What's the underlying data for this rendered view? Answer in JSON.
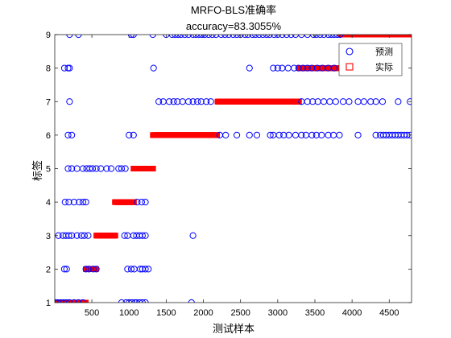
{
  "chart_data": {
    "type": "scatter",
    "title": "MRFO-BLS准确率",
    "subtitle": "accuracy=83.3055%",
    "xlabel": "测试样本",
    "ylabel": "标签",
    "xlim": [
      1,
      4800
    ],
    "ylim": [
      1,
      9
    ],
    "xticks": [
      500,
      1000,
      1500,
      2000,
      2500,
      3000,
      3500,
      4000,
      4500
    ],
    "yticks": [
      1,
      2,
      3,
      4,
      5,
      6,
      7,
      8,
      9
    ],
    "grid": false,
    "legend_position": "top-right",
    "series": [
      {
        "name": "预测",
        "marker": "circle",
        "color": "#0000ff",
        "points": [
          [
            10,
            1
          ],
          [
            40,
            1
          ],
          [
            80,
            1
          ],
          [
            120,
            1
          ],
          [
            160,
            1
          ],
          [
            200,
            1
          ],
          [
            260,
            1
          ],
          [
            320,
            1
          ],
          [
            380,
            1
          ],
          [
            900,
            1
          ],
          [
            960,
            1
          ],
          [
            1000,
            1
          ],
          [
            1040,
            1
          ],
          [
            1080,
            1
          ],
          [
            1100,
            1
          ],
          [
            1140,
            1
          ],
          [
            1180,
            1
          ],
          [
            1220,
            1
          ],
          [
            1840,
            1
          ],
          [
            130,
            2
          ],
          [
            160,
            2
          ],
          [
            420,
            2
          ],
          [
            460,
            2
          ],
          [
            520,
            2
          ],
          [
            560,
            2
          ],
          [
            980,
            2
          ],
          [
            1030,
            2
          ],
          [
            1070,
            2
          ],
          [
            1150,
            2
          ],
          [
            1180,
            2
          ],
          [
            1220,
            2
          ],
          [
            1260,
            2
          ],
          [
            50,
            3
          ],
          [
            110,
            3
          ],
          [
            150,
            3
          ],
          [
            190,
            3
          ],
          [
            230,
            3
          ],
          [
            300,
            3
          ],
          [
            360,
            3
          ],
          [
            400,
            3
          ],
          [
            450,
            3
          ],
          [
            940,
            3
          ],
          [
            980,
            3
          ],
          [
            1060,
            3
          ],
          [
            1100,
            3
          ],
          [
            1140,
            3
          ],
          [
            1180,
            3
          ],
          [
            1220,
            3
          ],
          [
            1860,
            3
          ],
          [
            140,
            4
          ],
          [
            190,
            4
          ],
          [
            260,
            4
          ],
          [
            330,
            4
          ],
          [
            380,
            4
          ],
          [
            420,
            4
          ],
          [
            1110,
            4
          ],
          [
            1170,
            4
          ],
          [
            1220,
            4
          ],
          [
            180,
            5
          ],
          [
            230,
            5
          ],
          [
            300,
            5
          ],
          [
            380,
            5
          ],
          [
            430,
            5
          ],
          [
            470,
            5
          ],
          [
            510,
            5
          ],
          [
            560,
            5
          ],
          [
            620,
            5
          ],
          [
            700,
            5
          ],
          [
            760,
            5
          ],
          [
            860,
            5
          ],
          [
            900,
            5
          ],
          [
            950,
            5
          ],
          [
            180,
            6
          ],
          [
            230,
            6
          ],
          [
            1000,
            6
          ],
          [
            1060,
            6
          ],
          [
            2220,
            6
          ],
          [
            2300,
            6
          ],
          [
            2450,
            6
          ],
          [
            2620,
            6
          ],
          [
            2720,
            6
          ],
          [
            2900,
            6
          ],
          [
            2940,
            6
          ],
          [
            3020,
            6
          ],
          [
            3080,
            6
          ],
          [
            3150,
            6
          ],
          [
            3240,
            6
          ],
          [
            3320,
            6
          ],
          [
            3380,
            6
          ],
          [
            3460,
            6
          ],
          [
            3520,
            6
          ],
          [
            3590,
            6
          ],
          [
            3680,
            6
          ],
          [
            3750,
            6
          ],
          [
            3830,
            6
          ],
          [
            4080,
            6
          ],
          [
            4320,
            6
          ],
          [
            4380,
            6
          ],
          [
            4420,
            6
          ],
          [
            4460,
            6
          ],
          [
            4500,
            6
          ],
          [
            4540,
            6
          ],
          [
            4580,
            6
          ],
          [
            4620,
            6
          ],
          [
            4660,
            6
          ],
          [
            4700,
            6
          ],
          [
            4740,
            6
          ],
          [
            4780,
            6
          ],
          [
            200,
            7
          ],
          [
            1400,
            7
          ],
          [
            1460,
            7
          ],
          [
            1540,
            7
          ],
          [
            1600,
            7
          ],
          [
            1650,
            7
          ],
          [
            1720,
            7
          ],
          [
            1800,
            7
          ],
          [
            1860,
            7
          ],
          [
            1920,
            7
          ],
          [
            1970,
            7
          ],
          [
            2040,
            7
          ],
          [
            2100,
            7
          ],
          [
            3320,
            7
          ],
          [
            3400,
            7
          ],
          [
            3470,
            7
          ],
          [
            3540,
            7
          ],
          [
            3620,
            7
          ],
          [
            3700,
            7
          ],
          [
            3780,
            7
          ],
          [
            3880,
            7
          ],
          [
            3960,
            7
          ],
          [
            4080,
            7
          ],
          [
            4160,
            7
          ],
          [
            4250,
            7
          ],
          [
            4320,
            7
          ],
          [
            4410,
            7
          ],
          [
            4620,
            7
          ],
          [
            4780,
            7
          ],
          [
            130,
            8
          ],
          [
            180,
            8
          ],
          [
            200,
            8
          ],
          [
            1330,
            8
          ],
          [
            2620,
            8
          ],
          [
            2940,
            8
          ],
          [
            3000,
            8
          ],
          [
            3060,
            8
          ],
          [
            3140,
            8
          ],
          [
            3220,
            8
          ],
          [
            3280,
            8
          ],
          [
            3340,
            8
          ],
          [
            3400,
            8
          ],
          [
            3460,
            8
          ],
          [
            3530,
            8
          ],
          [
            3600,
            8
          ],
          [
            3680,
            8
          ],
          [
            3760,
            8
          ],
          [
            4060,
            8
          ],
          [
            4120,
            8
          ],
          [
            4200,
            8
          ],
          [
            200,
            9
          ],
          [
            320,
            9
          ],
          [
            1030,
            9
          ],
          [
            1060,
            9
          ],
          [
            1320,
            9
          ],
          [
            1500,
            9
          ],
          [
            1580,
            9
          ],
          [
            1620,
            9
          ],
          [
            1660,
            9
          ],
          [
            1700,
            9
          ],
          [
            1750,
            9
          ],
          [
            1800,
            9
          ],
          [
            1860,
            9
          ],
          [
            1900,
            9
          ],
          [
            1940,
            9
          ],
          [
            1980,
            9
          ],
          [
            2020,
            9
          ],
          [
            2070,
            9
          ],
          [
            2120,
            9
          ],
          [
            2170,
            9
          ],
          [
            2240,
            9
          ],
          [
            2290,
            9
          ],
          [
            2340,
            9
          ],
          [
            2400,
            9
          ],
          [
            2450,
            9
          ],
          [
            2500,
            9
          ],
          [
            2560,
            9
          ],
          [
            2600,
            9
          ],
          [
            2660,
            9
          ],
          [
            2700,
            9
          ],
          [
            2750,
            9
          ],
          [
            2800,
            9
          ],
          [
            2850,
            9
          ],
          [
            2890,
            9
          ],
          [
            2950,
            9
          ],
          [
            3000,
            9
          ],
          [
            3060,
            9
          ],
          [
            3120,
            9
          ],
          [
            3180,
            9
          ],
          [
            3240,
            9
          ],
          [
            3320,
            9
          ],
          [
            3400,
            9
          ],
          [
            3480,
            9
          ],
          [
            3520,
            9
          ],
          [
            3570,
            9
          ],
          [
            3620,
            9
          ],
          [
            3680,
            9
          ],
          [
            3720,
            9
          ],
          [
            3760,
            9
          ],
          [
            3800,
            9
          ],
          [
            3840,
            9
          ]
        ]
      },
      {
        "name": "实际",
        "marker": "square",
        "color": "#ff0000",
        "segments": [
          {
            "y": 1,
            "x_from": 10,
            "x_to": 420
          },
          {
            "y": 2,
            "x_from": 420,
            "x_to": 560
          },
          {
            "y": 3,
            "x_from": 560,
            "x_to": 820
          },
          {
            "y": 4,
            "x_from": 810,
            "x_to": 1070
          },
          {
            "y": 5,
            "x_from": 1060,
            "x_to": 1330
          },
          {
            "y": 6,
            "x_from": 1320,
            "x_to": 2190
          },
          {
            "y": 7,
            "x_from": 2190,
            "x_to": 3290
          },
          {
            "y": 8,
            "x_from": 3290,
            "x_to": 3850
          },
          {
            "y": 9,
            "x_from": 3850,
            "x_to": 4800
          }
        ]
      }
    ]
  }
}
